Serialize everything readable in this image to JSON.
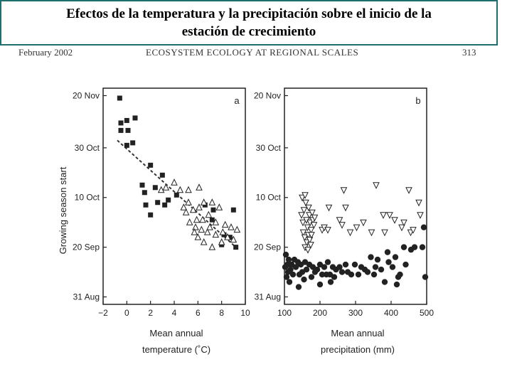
{
  "slide": {
    "title_line1": "Efectos de la temperatura y la precipitación sobre el inicio de la",
    "title_line2": "estación de crecimiento"
  },
  "header": {
    "left": "February 2002",
    "center": "ECOSYSTEM ECOLOGY AT REGIONAL SCALES",
    "right": "313"
  },
  "chart_data": [
    {
      "type": "scatter",
      "panel_label": "a",
      "ylabel": "Growing season start",
      "xlabel_line1": "Mean annual",
      "xlabel_line2": "temperature (˚C)",
      "xlim": [
        -2,
        10
      ],
      "x_ticks": [
        "−2",
        "0",
        "2",
        "4",
        "6",
        "8",
        "10"
      ],
      "ylim_days": [
        -3,
        84
      ],
      "y_ticks": [
        "31 Aug",
        "20 Sep",
        "10 Oct",
        "30 Oct",
        "20 Nov"
      ],
      "y_tick_days": [
        0,
        20,
        40,
        60,
        81
      ],
      "trend_line": [
        [
          -0.8,
          63
        ],
        [
          9.2,
          20
        ]
      ],
      "series": [
        {
          "marker": "square",
          "points": [
            [
              -0.6,
              80
            ],
            [
              -0.5,
              70
            ],
            [
              -0.5,
              67
            ],
            [
              0,
              71
            ],
            [
              0.1,
              67
            ],
            [
              0,
              61
            ],
            [
              0.5,
              62
            ],
            [
              0.7,
              72
            ],
            [
              1.3,
              45
            ],
            [
              1.5,
              42
            ],
            [
              2,
              53
            ],
            [
              2.4,
              44
            ],
            [
              2.6,
              38
            ],
            [
              1.6,
              37
            ],
            [
              2.0,
              33
            ],
            [
              3.0,
              49
            ],
            [
              3.2,
              37
            ],
            [
              3.5,
              39
            ],
            [
              4.2,
              41
            ],
            [
              6.6,
              37
            ],
            [
              7.3,
              35
            ],
            [
              7.2,
              31
            ],
            [
              8,
              21
            ],
            [
              8.2,
              25
            ],
            [
              8.7,
              24
            ],
            [
              9.0,
              35
            ],
            [
              9.2,
              20
            ]
          ]
        },
        {
          "marker": "triangle",
          "points": [
            [
              2.9,
              43
            ],
            [
              3.3,
              44
            ],
            [
              4.0,
              46
            ],
            [
              4.5,
              43
            ],
            [
              5.2,
              43
            ],
            [
              6.1,
              44
            ],
            [
              6.5,
              38
            ],
            [
              6.1,
              36
            ],
            [
              5.2,
              38
            ],
            [
              5.6,
              35
            ],
            [
              5.9,
              31
            ],
            [
              6.4,
              31
            ],
            [
              6.9,
              33
            ],
            [
              7.2,
              38
            ],
            [
              7.8,
              36
            ],
            [
              7.5,
              30
            ],
            [
              5.3,
              30
            ],
            [
              5.8,
              28
            ],
            [
              6.3,
              27
            ],
            [
              6.8,
              26
            ],
            [
              7.5,
              25
            ],
            [
              8.1,
              26
            ],
            [
              8.5,
              24
            ],
            [
              8.0,
              22
            ],
            [
              9.0,
              23
            ],
            [
              6.5,
              22
            ],
            [
              7.0,
              28
            ],
            [
              5.7,
              26
            ],
            [
              7.2,
              20
            ],
            [
              8.3,
              29
            ],
            [
              8.8,
              28
            ],
            [
              9.3,
              27
            ],
            [
              6.0,
              24
            ],
            [
              4.8,
              36
            ],
            [
              5.0,
              34
            ]
          ]
        }
      ]
    },
    {
      "type": "scatter",
      "panel_label": "b",
      "xlabel_line1": "Mean annual",
      "xlabel_line2": "precipitation (mm)",
      "xlim": [
        100,
        500
      ],
      "x_ticks": [
        "100",
        "200",
        "300",
        "400",
        "500"
      ],
      "ylim_days": [
        -3,
        84
      ],
      "y_ticks": [
        "31 Aug",
        "20 Sep",
        "10 Oct",
        "30 Oct",
        "20 Nov"
      ],
      "y_tick_days": [
        0,
        20,
        40,
        60,
        81
      ],
      "series": [
        {
          "marker": "triangle-down",
          "points": [
            [
              150,
              40
            ],
            [
              152,
              30
            ],
            [
              155,
              35
            ],
            [
              158,
              41
            ],
            [
              160,
              38
            ],
            [
              162,
              31
            ],
            [
              165,
              28
            ],
            [
              168,
              36
            ],
            [
              170,
              33
            ],
            [
              172,
              30
            ],
            [
              175,
              27
            ],
            [
              178,
              34
            ],
            [
              180,
              31
            ],
            [
              183,
              29
            ],
            [
              185,
              32
            ],
            [
              148,
              33
            ],
            [
              153,
              26
            ],
            [
              157,
              24
            ],
            [
              163,
              22
            ],
            [
              167,
              25
            ],
            [
              171,
              23
            ],
            [
              176,
              25
            ],
            [
              158,
              20
            ],
            [
              166,
              19
            ],
            [
              174,
              21
            ],
            [
              206,
              27
            ],
            [
              212,
              28
            ],
            [
              222,
              27
            ],
            [
              225,
              36
            ],
            [
              255,
              31
            ],
            [
              262,
              29
            ],
            [
              267,
              43
            ],
            [
              272,
              36
            ],
            [
              285,
              26
            ],
            [
              303,
              28
            ],
            [
              322,
              30
            ],
            [
              345,
              26
            ],
            [
              358,
              45
            ],
            [
              378,
              33
            ],
            [
              382,
              26
            ],
            [
              396,
              33
            ],
            [
              410,
              31
            ],
            [
              430,
              28
            ],
            [
              436,
              30
            ],
            [
              450,
              43
            ],
            [
              455,
              26
            ],
            [
              462,
              27
            ],
            [
              478,
              38
            ],
            [
              482,
              33
            ]
          ]
        },
        {
          "marker": "circle",
          "points": [
            [
              102,
              12
            ],
            [
              104,
              17
            ],
            [
              106,
              8
            ],
            [
              108,
              13
            ],
            [
              110,
              10
            ],
            [
              112,
              15
            ],
            [
              114,
              6
            ],
            [
              117,
              11
            ],
            [
              120,
              13
            ],
            [
              124,
              9
            ],
            [
              128,
              15
            ],
            [
              132,
              12
            ],
            [
              138,
              14
            ],
            [
              142,
              9
            ],
            [
              146,
              13
            ],
            [
              150,
              10
            ],
            [
              155,
              7
            ],
            [
              158,
              14
            ],
            [
              162,
              11
            ],
            [
              170,
              13
            ],
            [
              176,
              8
            ],
            [
              180,
              12
            ],
            [
              186,
              10
            ],
            [
              192,
              11
            ],
            [
              200,
              13
            ],
            [
              206,
              9
            ],
            [
              212,
              12
            ],
            [
              218,
              9
            ],
            [
              222,
              14
            ],
            [
              228,
              9
            ],
            [
              236,
              12
            ],
            [
              240,
              8
            ],
            [
              245,
              11
            ],
            [
              255,
              12
            ],
            [
              262,
              10
            ],
            [
              272,
              13
            ],
            [
              278,
              10
            ],
            [
              288,
              9
            ],
            [
              298,
              13
            ],
            [
              308,
              9
            ],
            [
              316,
              12
            ],
            [
              326,
              11
            ],
            [
              334,
              10
            ],
            [
              343,
              16
            ],
            [
              352,
              9
            ],
            [
              356,
              12
            ],
            [
              362,
              15
            ],
            [
              372,
              11
            ],
            [
              382,
              6
            ],
            [
              390,
              18
            ],
            [
              393,
              14
            ],
            [
              404,
              12
            ],
            [
              412,
              16
            ],
            [
              425,
              9
            ],
            [
              436,
              20
            ],
            [
              441,
              13
            ],
            [
              456,
              19
            ],
            [
              466,
              20
            ],
            [
              488,
              20
            ],
            [
              492,
              28
            ],
            [
              416,
              5
            ],
            [
              420,
              8
            ],
            [
              496,
              8
            ],
            [
              140,
              4
            ],
            [
              200,
              5
            ],
            [
              230,
              6
            ]
          ]
        }
      ]
    }
  ]
}
